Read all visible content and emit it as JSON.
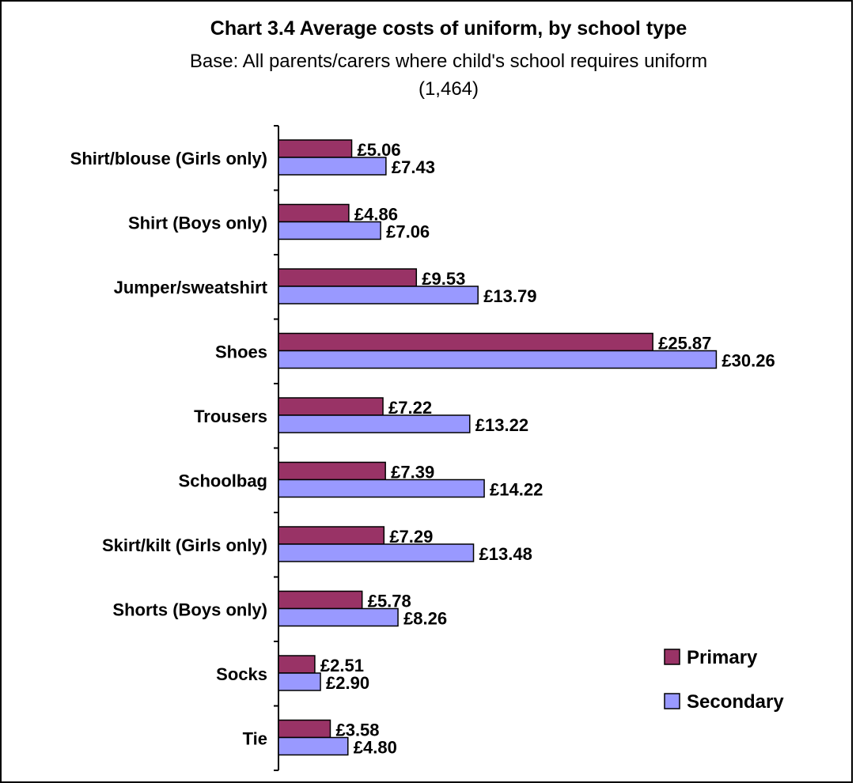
{
  "chart_data": {
    "type": "bar",
    "orientation": "horizontal",
    "title": "Chart 3.4 Average costs of uniform, by school type",
    "subtitle_line1": "Base: All parents/carers where child's school requires uniform",
    "subtitle_line2": "(1,464)",
    "categories": [
      "Shirt/blouse (Girls only)",
      "Shirt (Boys only)",
      "Jumper/sweatshirt",
      "Shoes",
      "Trousers",
      "Schoolbag",
      "Skirt/kilt (Girls only)",
      "Shorts (Boys only)",
      "Socks",
      "Tie"
    ],
    "series": [
      {
        "name": "Primary",
        "color": "#993366",
        "values": [
          5.06,
          4.86,
          9.53,
          25.87,
          7.22,
          7.39,
          7.29,
          5.78,
          2.51,
          3.58
        ],
        "labels": [
          "£5.06",
          "£4.86",
          "£9.53",
          "£25.87",
          "£7.22",
          "£7.39",
          "£7.29",
          "£5.78",
          "£2.51",
          "£3.58"
        ]
      },
      {
        "name": "Secondary",
        "color": "#9999ff",
        "values": [
          7.43,
          7.06,
          13.79,
          30.26,
          13.22,
          14.22,
          13.48,
          8.26,
          2.9,
          4.8
        ],
        "labels": [
          "£7.43",
          "£7.06",
          "£13.79",
          "£30.26",
          "£13.22",
          "£14.22",
          "£13.48",
          "£8.26",
          "£2.90",
          "£4.80"
        ]
      }
    ],
    "xlim": [
      0,
      35
    ],
    "grid": false,
    "legend_position": "bottom-right"
  }
}
